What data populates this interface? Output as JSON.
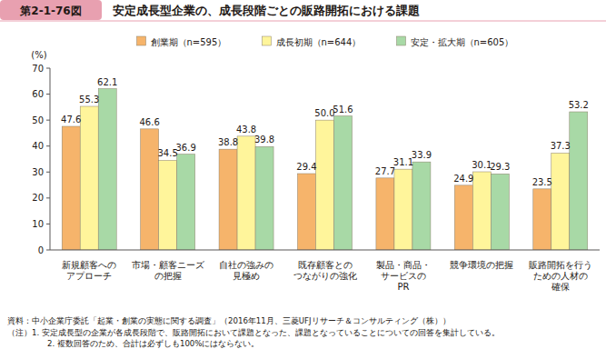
{
  "chart_data": {
    "type": "bar",
    "title": "安定成長型企業の、成長段階ごとの販路開拓における課題",
    "annotations": [
      "第2-1-76図",
      "資料：中小企業庁委託「起業・創業の実態に関する調査」（2016年11月、三菱UFJリサーチ＆コンサルティング（株））",
      "（注）1. 安定成長型の企業が各成長段階で、販路開拓において課題となった、課題となっていることについての回答を集計している。",
      "2. 複数回答のため、合計は必ずしも100%にはならない。"
    ],
    "y_label": "(%)",
    "categories": [
      "新規顧客への\nアプローチ",
      "市場・顧客ニーズ\nの把握",
      "自社の強みの\n見極め",
      "既存顧客との\nつながりの強化",
      "製品・商品・\nサービスの\nPR",
      "競争環境の把握",
      "販路開拓を行う\nための人材の\n確保"
    ],
    "series": [
      {
        "name": "創業期（n=595）",
        "color": "#f6b46b",
        "values": [
          47.6,
          46.6,
          38.8,
          29.4,
          27.7,
          24.9,
          23.5
        ],
        "value_labels": [
          "47.6",
          "46.6",
          "38.8",
          "29.4",
          "27.7",
          "24.9",
          "23.5"
        ]
      },
      {
        "name": "成長初期（n=644）",
        "color": "#fff59b",
        "values": [
          55.3,
          34.5,
          43.8,
          50.0,
          31.1,
          30.1,
          37.3
        ],
        "value_labels": [
          "55.3",
          "34.5",
          "43.8",
          "50.0",
          "31.1",
          "30.1",
          "37.3"
        ]
      },
      {
        "name": "安定・拡大期（n=605）",
        "color": "#a8d9a6",
        "values": [
          62.1,
          36.9,
          39.8,
          51.6,
          33.9,
          29.3,
          53.2
        ],
        "value_labels": [
          "62.1",
          "36.9",
          "39.8",
          "51.6",
          "33.9",
          "29.3",
          "53.2"
        ]
      }
    ],
    "ylim": [
      0,
      70
    ],
    "yticks": [
      0,
      10,
      20,
      30,
      40,
      50,
      60,
      70
    ],
    "grid": false,
    "legend": "top",
    "data_labels": true
  }
}
